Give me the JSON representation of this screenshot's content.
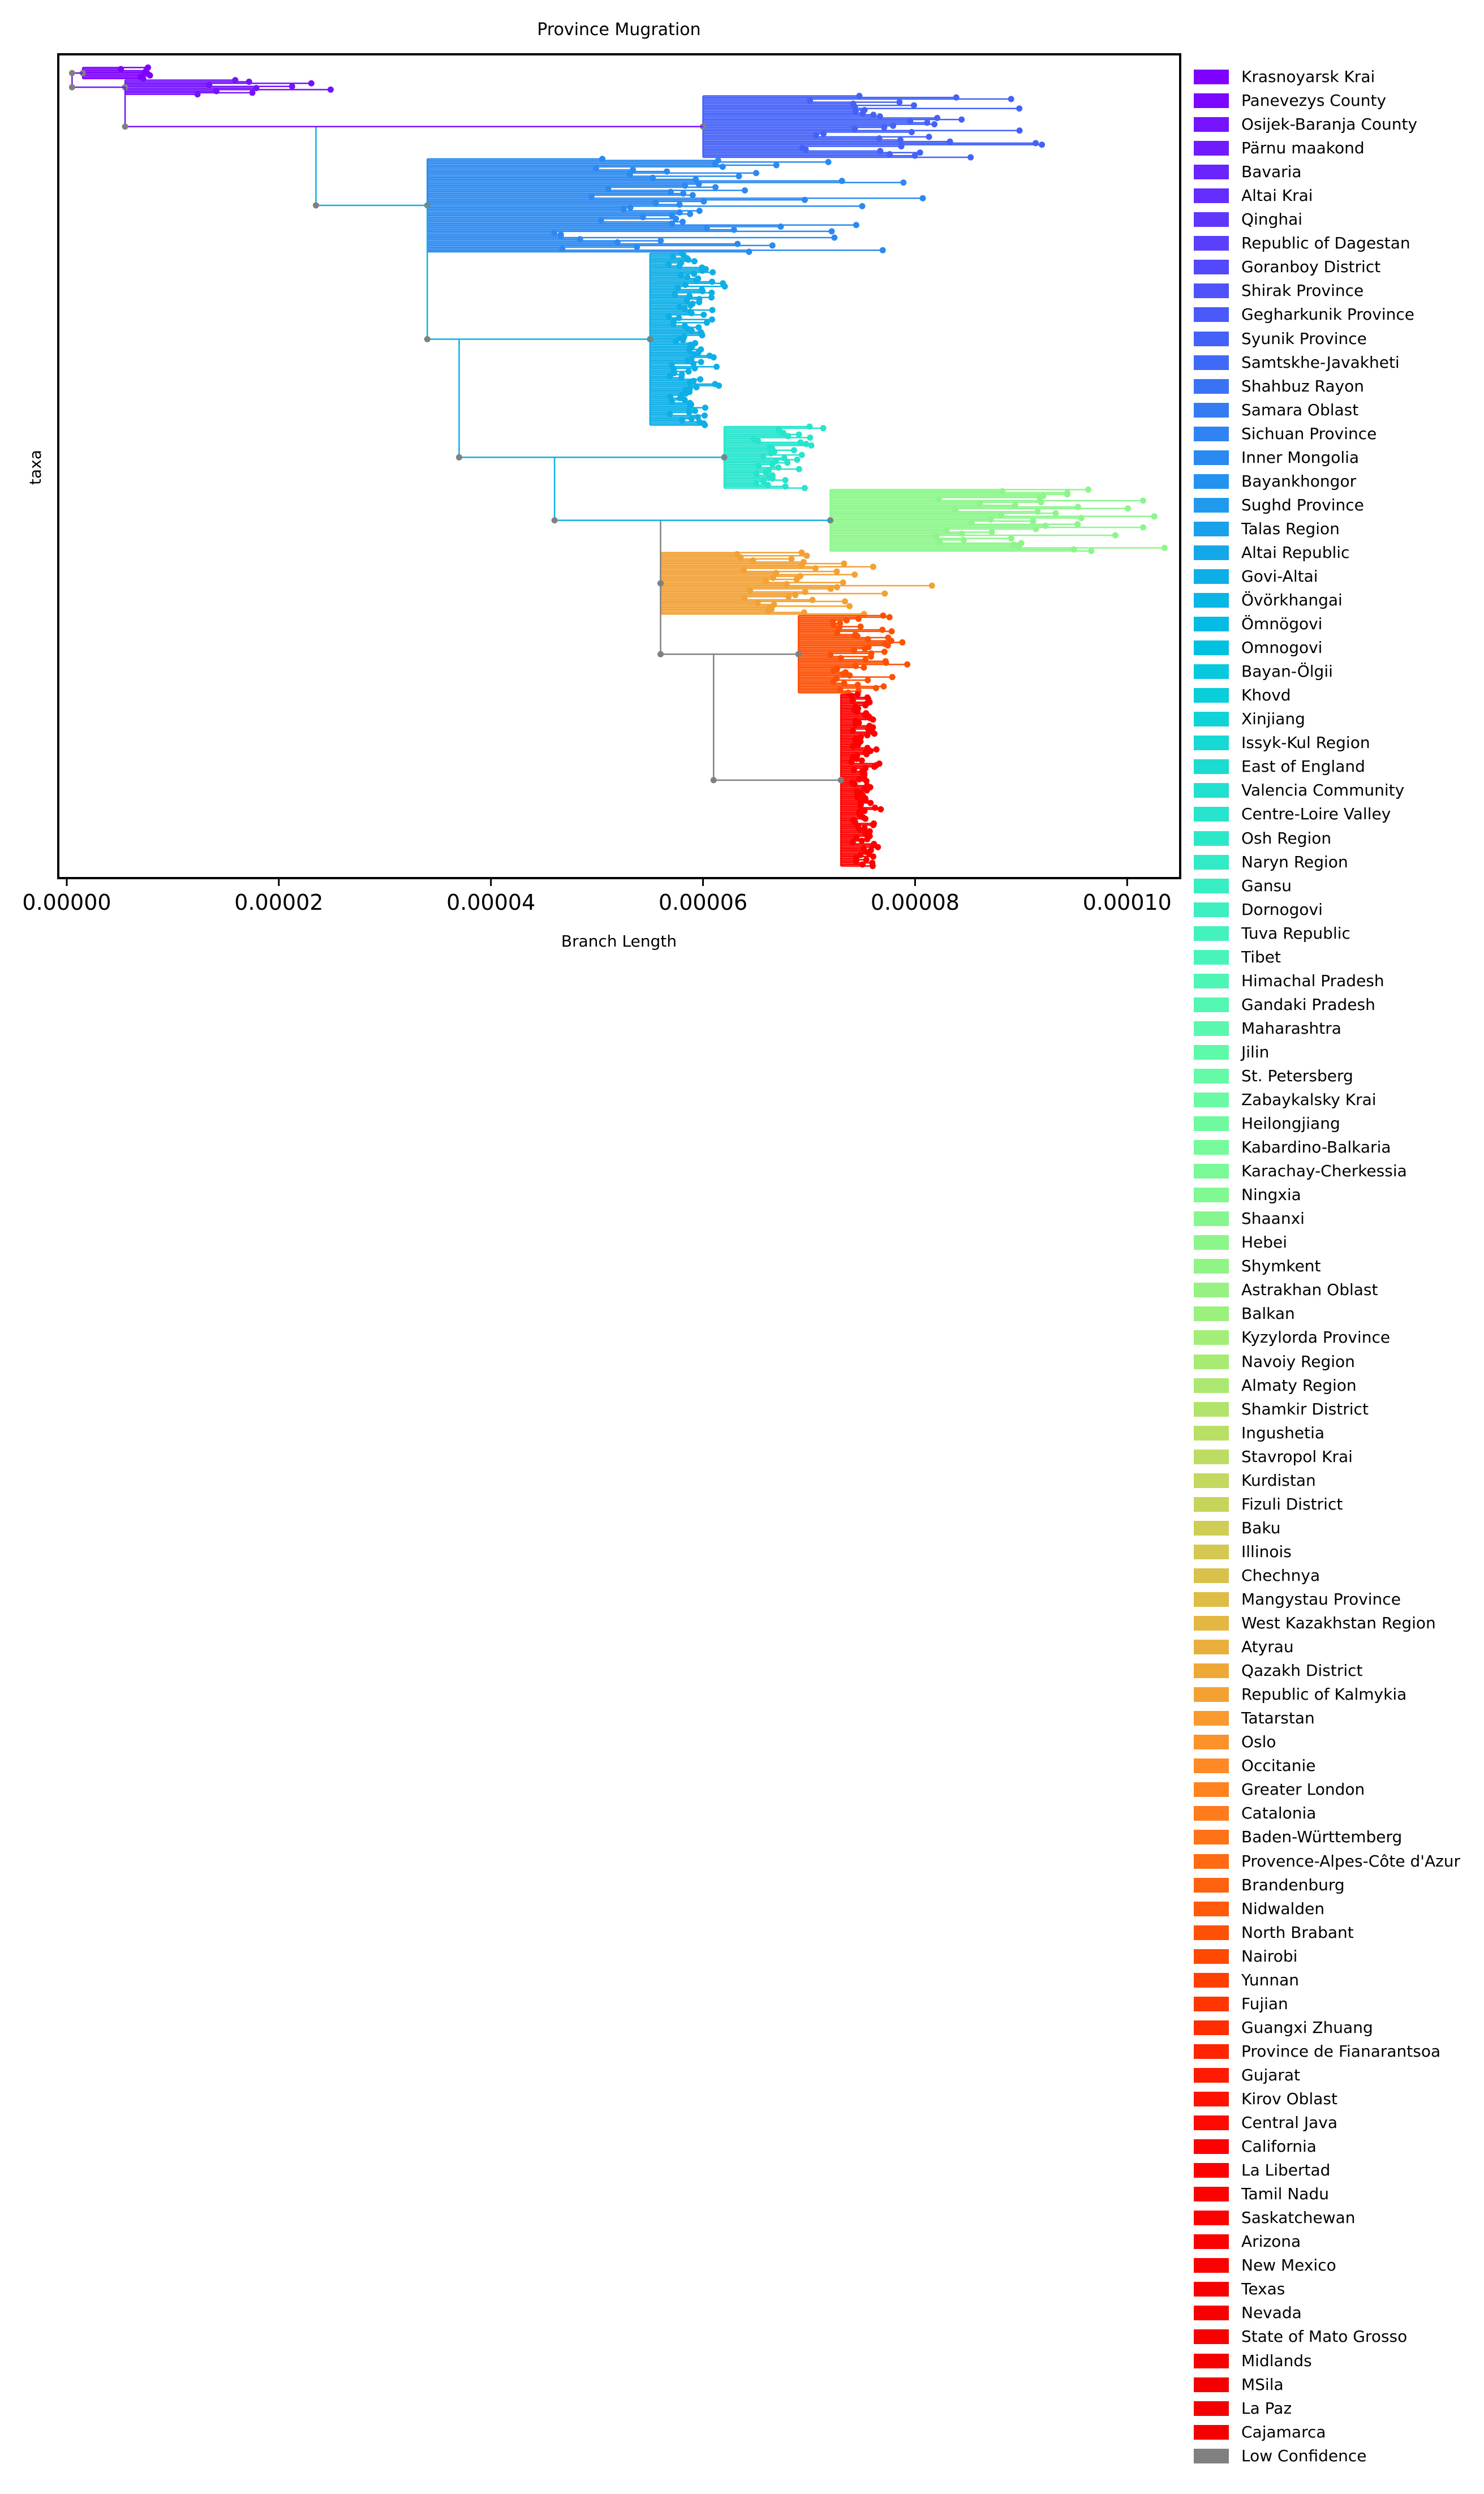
{
  "chart_data": {
    "type": "phylogenetic-tree",
    "title": "Province Mugration",
    "xlabel": "Branch Length",
    "ylabel": "taxa",
    "xlim": [
      -8e-07,
      0.000105
    ],
    "xticks": [
      {
        "value": 0.0,
        "label": "0.00000"
      },
      {
        "value": 2e-05,
        "label": "0.00002"
      },
      {
        "value": 4e-05,
        "label": "0.00004"
      },
      {
        "value": 6e-05,
        "label": "0.00006"
      },
      {
        "value": 8e-05,
        "label": "0.00008"
      },
      {
        "value": 0.0001,
        "label": "0.00010"
      }
    ],
    "grid": false,
    "legend_position": "outside-right",
    "legend": [
      {
        "label": "Krasnoyarsk Krai",
        "color": "#7f00ff"
      },
      {
        "label": "Panevezys County",
        "color": "#7a08ff"
      },
      {
        "label": "Osijek-Baranja County",
        "color": "#7512fe"
      },
      {
        "label": "Pärnu maakond",
        "color": "#701bfe"
      },
      {
        "label": "Bavaria",
        "color": "#6a24fe"
      },
      {
        "label": "Altai Krai",
        "color": "#652dfd"
      },
      {
        "label": "Qinghai",
        "color": "#6036fd"
      },
      {
        "label": "Republic of Dagestan",
        "color": "#5a3ffc"
      },
      {
        "label": "Goranboy District",
        "color": "#5548fb"
      },
      {
        "label": "Shirak Province",
        "color": "#4f51fa"
      },
      {
        "label": "Gegharkunik Province",
        "color": "#4a59f9"
      },
      {
        "label": "Syunik Province",
        "color": "#4562f8"
      },
      {
        "label": "Samtskhe-Javakheti",
        "color": "#3f6af7"
      },
      {
        "label": "Shahbuz Rayon",
        "color": "#3a72f5"
      },
      {
        "label": "Samara Oblast",
        "color": "#347bf4"
      },
      {
        "label": "Sichuan Province",
        "color": "#2f83f2"
      },
      {
        "label": "Inner Mongolia",
        "color": "#2a8af1"
      },
      {
        "label": "Bayankhongor",
        "color": "#2492ef"
      },
      {
        "label": "Sughd Province",
        "color": "#1f9aed"
      },
      {
        "label": "Talas Region",
        "color": "#19a1eb"
      },
      {
        "label": "Altai Republic",
        "color": "#14a8e9"
      },
      {
        "label": "Govi-Altai",
        "color": "#0eafe7"
      },
      {
        "label": "Övörkhangai",
        "color": "#0ab6e5"
      },
      {
        "label": "Ömnögovi",
        "color": "#04bce3"
      },
      {
        "label": "Omnogovi",
        "color": "#00c2e0"
      },
      {
        "label": "Bayan-Ölgii",
        "color": "#06c8de"
      },
      {
        "label": "Khovd",
        "color": "#0bcedb"
      },
      {
        "label": "Xinjiang",
        "color": "#10d3d8"
      },
      {
        "label": "Issyk-Kul Region",
        "color": "#16d8d5"
      },
      {
        "label": "East of England",
        "color": "#1cdcd2"
      },
      {
        "label": "Valencia Community",
        "color": "#22e0cf"
      },
      {
        "label": "Centre-Loire Valley",
        "color": "#27e4cc"
      },
      {
        "label": "Osh Region",
        "color": "#2ce8c9"
      },
      {
        "label": "Naryn Region",
        "color": "#32ebc6"
      },
      {
        "label": "Gansu",
        "color": "#38eec3"
      },
      {
        "label": "Dornogovi",
        "color": "#3ef0bf"
      },
      {
        "label": "Tuva Republic",
        "color": "#43f2bc"
      },
      {
        "label": "Tibet",
        "color": "#48f4b9"
      },
      {
        "label": "Himachal Pradesh",
        "color": "#4ef6b5"
      },
      {
        "label": "Gandaki Pradesh",
        "color": "#54f7b2"
      },
      {
        "label": "Maharashtra",
        "color": "#5af8ae"
      },
      {
        "label": "Jilin",
        "color": "#5ff9aa"
      },
      {
        "label": "St. Petersberg",
        "color": "#64faa7"
      },
      {
        "label": "Zabaykalsky Krai",
        "color": "#6afaa3"
      },
      {
        "label": "Heilongjiang",
        "color": "#70fa9f"
      },
      {
        "label": "Kabardino-Balkaria",
        "color": "#76fa9b"
      },
      {
        "label": "Karachay-Cherkessia",
        "color": "#7bf997"
      },
      {
        "label": "Ningxia",
        "color": "#80f993"
      },
      {
        "label": "Shaanxi",
        "color": "#86f78f"
      },
      {
        "label": "Hebei",
        "color": "#8cf68b"
      },
      {
        "label": "Shymkent",
        "color": "#91f486"
      },
      {
        "label": "Astrakhan Oblast",
        "color": "#96f282"
      },
      {
        "label": "Balkan",
        "color": "#9cf07e"
      },
      {
        "label": "Kyzylorda Province",
        "color": "#a2ee79"
      },
      {
        "label": "Navoiy Region",
        "color": "#a7eb75"
      },
      {
        "label": "Almaty Region",
        "color": "#ace871"
      },
      {
        "label": "Shamkir District",
        "color": "#b2e46c"
      },
      {
        "label": "Ingushetia",
        "color": "#b8e067"
      },
      {
        "label": "Stavropol Krai",
        "color": "#bddc63"
      },
      {
        "label": "Kurdistan",
        "color": "#c2d85e"
      },
      {
        "label": "Fizuli District",
        "color": "#c8d359"
      },
      {
        "label": "Baku",
        "color": "#cece55"
      },
      {
        "label": "Illinois",
        "color": "#d3c850"
      },
      {
        "label": "Chechnya",
        "color": "#d8c24b"
      },
      {
        "label": "Mangystau Province",
        "color": "#debc46"
      },
      {
        "label": "West Kazakhstan Region",
        "color": "#e4b642"
      },
      {
        "label": "Atyrau",
        "color": "#e9af3d"
      },
      {
        "label": "Qazakh District",
        "color": "#eea838"
      },
      {
        "label": "Republic of Kalmykia",
        "color": "#f4a134"
      },
      {
        "label": "Tatarstan",
        "color": "#f99a2f"
      },
      {
        "label": "Oslo",
        "color": "#fe922a"
      },
      {
        "label": "Occitanie",
        "color": "#ff8a25"
      },
      {
        "label": "Greater London",
        "color": "#ff8321"
      },
      {
        "label": "Catalonia",
        "color": "#ff7b1c"
      },
      {
        "label": "Baden-Württemberg",
        "color": "#ff7217"
      },
      {
        "label": "Provence-Alpes-Côte d'Azur",
        "color": "#ff6a13"
      },
      {
        "label": "Brandenburg",
        "color": "#ff620e"
      },
      {
        "label": "Nidwalden",
        "color": "#ff5909"
      },
      {
        "label": "North Brabant",
        "color": "#ff5105"
      },
      {
        "label": "Nairobi",
        "color": "#ff4800"
      },
      {
        "label": "Yunnan",
        "color": "#ff3f00"
      },
      {
        "label": "Fujian",
        "color": "#ff3600"
      },
      {
        "label": "Guangxi Zhuang",
        "color": "#ff2d00"
      },
      {
        "label": "Province de Fianarantsoa",
        "color": "#ff2400"
      },
      {
        "label": "Gujarat",
        "color": "#ff1b00"
      },
      {
        "label": "Kirov Oblast",
        "color": "#ff1200"
      },
      {
        "label": "Central Java",
        "color": "#ff0900"
      },
      {
        "label": "California",
        "color": "#ff0000"
      },
      {
        "label": "La Libertad",
        "color": "#fe0000"
      },
      {
        "label": "Tamil Nadu",
        "color": "#fd0000"
      },
      {
        "label": "Saskatchewan",
        "color": "#fc0000"
      },
      {
        "label": "Arizona",
        "color": "#fb0000"
      },
      {
        "label": "New Mexico",
        "color": "#fa0000"
      },
      {
        "label": "Texas",
        "color": "#f90000"
      },
      {
        "label": "Nevada",
        "color": "#f80000"
      },
      {
        "label": "State of Mato Grosso",
        "color": "#f70000"
      },
      {
        "label": "Midlands",
        "color": "#f60000"
      },
      {
        "label": "MSila",
        "color": "#f50000"
      },
      {
        "label": "La Paz",
        "color": "#f40000"
      },
      {
        "label": "Cajamarca",
        "color": "#f30000"
      },
      {
        "label": "Low Confidence",
        "color": "#808080"
      }
    ],
    "tree": {
      "root_color": "#808080",
      "clades": [
        {
          "color": "#7f00ff",
          "x_start": 1.5e-06,
          "x_end": 1.15e-05,
          "tips": 8
        },
        {
          "color": "#7512fe",
          "x_start": 5.5e-06,
          "x_end": 2.65e-05,
          "tips": 10
        },
        {
          "color": "#4562f8",
          "x_start": 6e-05,
          "x_end": 9.5e-05,
          "tips": 40
        },
        {
          "color": "#2a8af1",
          "x_start": 3.4e-05,
          "x_end": 7.9e-05,
          "tips": 60
        },
        {
          "color": "#0eafe7",
          "x_start": 5.5e-05,
          "x_end": 6.2e-05,
          "tips": 110
        },
        {
          "color": "#27e4cc",
          "x_start": 6.2e-05,
          "x_end": 7.2e-05,
          "tips": 40
        },
        {
          "color": "#8cf68b",
          "x_start": 7.2e-05,
          "x_end": 0.000105,
          "tips": 40
        },
        {
          "color": "#f4a134",
          "x_start": 5.6e-05,
          "x_end": 8.1e-05,
          "tips": 40
        },
        {
          "color": "#ff5105",
          "x_start": 6.9e-05,
          "x_end": 8e-05,
          "tips": 50
        },
        {
          "color": "#ff0000",
          "x_start": 7.3e-05,
          "x_end": 7.7e-05,
          "tips": 110
        }
      ]
    }
  }
}
